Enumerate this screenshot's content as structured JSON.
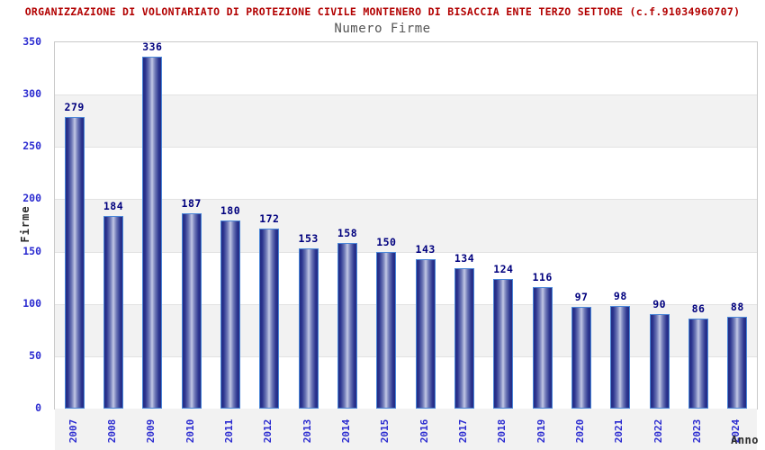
{
  "header": {
    "title": "ORGANIZZAZIONE DI VOLONTARIATO DI PROTEZIONE CIVILE MONTENERO DI BISACCIA ENTE TERZO SETTORE (c.f.91034960707)",
    "subtitle": "Numero Firme"
  },
  "chart_data": {
    "type": "bar",
    "title": "Numero Firme",
    "categories": [
      "2007",
      "2008",
      "2009",
      "2010",
      "2011",
      "2012",
      "2013",
      "2014",
      "2015",
      "2016",
      "2017",
      "2018",
      "2019",
      "2020",
      "2021",
      "2022",
      "2023",
      "2024"
    ],
    "values": [
      279,
      184,
      336,
      187,
      180,
      172,
      153,
      158,
      150,
      143,
      134,
      124,
      116,
      97,
      98,
      90,
      86,
      88
    ],
    "xlabel": "Anno",
    "ylabel": "Firme",
    "ylim": [
      0,
      350
    ],
    "ytick_step": 50,
    "yticks": [
      0,
      50,
      100,
      150,
      200,
      250,
      300,
      350
    ],
    "grid": "alternating-horizontal-bands",
    "legend": "none",
    "value_labels": true
  },
  "colors": {
    "title": "#b20000",
    "subtitle": "#555555",
    "axis_tick": "#2b2bd0",
    "value_label": "#00007e",
    "band": "#f2f2f2",
    "gridline": "#e2e2e2",
    "plot_border": "#c9c9c9",
    "bar_border": "#4a86d8",
    "bar_dark": "#232b82",
    "bar_light": "#c9cee9"
  }
}
